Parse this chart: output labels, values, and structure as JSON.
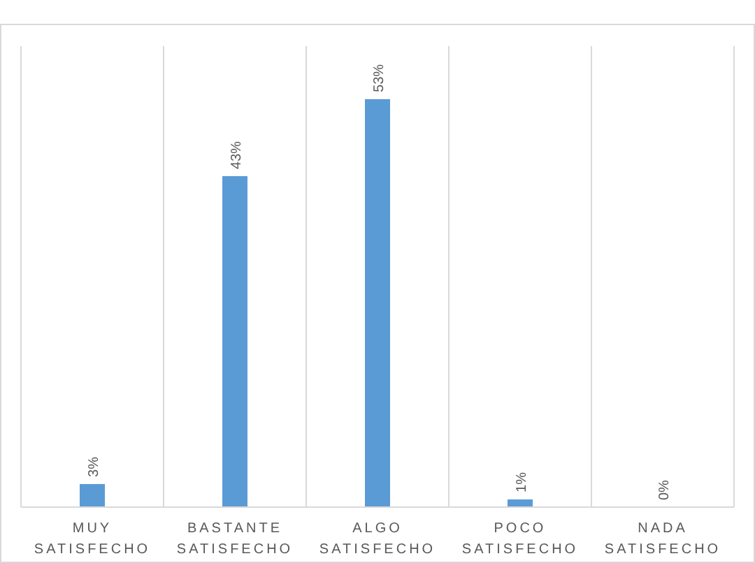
{
  "chart_data": {
    "type": "bar",
    "categories": [
      "MUY SATISFECHO",
      "BASTANTE SATISFECHO",
      "ALGO SATISFECHO",
      "POCO SATISFECHO",
      "NADA SATISFECHO"
    ],
    "values": [
      3,
      43,
      53,
      1,
      0
    ],
    "value_labels": [
      "3%",
      "43%",
      "53%",
      "1%",
      "0%"
    ],
    "color": "#5b9bd5",
    "grid": "x"
  }
}
